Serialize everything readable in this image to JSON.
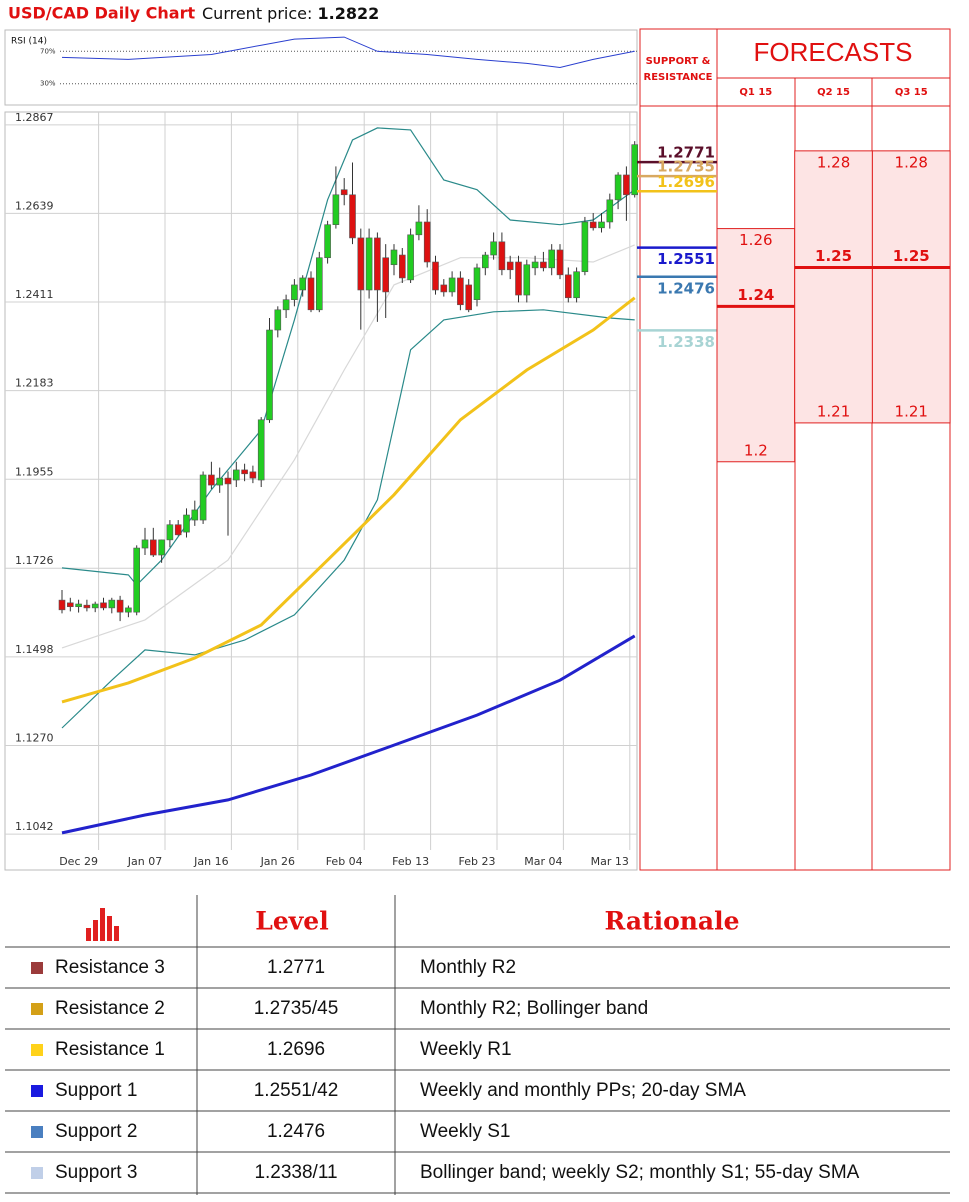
{
  "chart_data": {
    "type": "candlestick",
    "title": "USD/CAD Daily Chart",
    "price_label": "Current price:",
    "current_price": 1.2822,
    "ylim": [
      1.1001,
      1.29
    ],
    "yticks": [
      1.2867,
      1.2639,
      1.2411,
      1.2183,
      1.1955,
      1.1726,
      1.1498,
      {
        "value": 1.127,
        "label": "1.1270"
      },
      1.1042
    ],
    "grid": true,
    "up_color": "#22cc22",
    "down_color": "#dd1111",
    "categories": [
      null,
      null,
      "Dec 29",
      null,
      null,
      null,
      null,
      null,
      null,
      null,
      "Jan 07",
      null,
      null,
      null,
      null,
      null,
      null,
      null,
      "Jan 16",
      null,
      null,
      null,
      null,
      null,
      null,
      null,
      "Jan 26",
      null,
      null,
      null,
      null,
      null,
      null,
      null,
      "Feb 04",
      null,
      null,
      null,
      null,
      null,
      null,
      null,
      "Feb 13",
      null,
      null,
      null,
      null,
      null,
      null,
      null,
      "Feb 23",
      null,
      null,
      null,
      null,
      null,
      null,
      null,
      "Mar 04",
      null,
      null,
      null,
      null,
      null,
      null,
      null,
      "Mar 13",
      null,
      null,
      null
    ],
    "candles": [
      {
        "open": 1.1644,
        "high": 1.167,
        "low": 1.161,
        "close": 1.1619
      },
      {
        "open": 1.1637,
        "high": 1.165,
        "low": 1.1615,
        "close": 1.1627
      },
      {
        "open": 1.1627,
        "high": 1.1645,
        "low": 1.1612,
        "close": 1.1634
      },
      {
        "open": 1.1631,
        "high": 1.1645,
        "low": 1.1615,
        "close": 1.1624
      },
      {
        "open": 1.1624,
        "high": 1.164,
        "low": 1.1613,
        "close": 1.1634
      },
      {
        "open": 1.1637,
        "high": 1.165,
        "low": 1.1618,
        "close": 1.1624
      },
      {
        "open": 1.1624,
        "high": 1.165,
        "low": 1.161,
        "close": 1.1644
      },
      {
        "open": 1.1644,
        "high": 1.1655,
        "low": 1.159,
        "close": 1.1613
      },
      {
        "open": 1.1613,
        "high": 1.163,
        "low": 1.16,
        "close": 1.1624
      },
      {
        "open": 1.1613,
        "high": 1.1785,
        "low": 1.1605,
        "close": 1.1778
      },
      {
        "open": 1.1778,
        "high": 1.183,
        "low": 1.176,
        "close": 1.1799
      },
      {
        "open": 1.1799,
        "high": 1.183,
        "low": 1.1755,
        "close": 1.176
      },
      {
        "open": 1.176,
        "high": 1.18,
        "low": 1.174,
        "close": 1.1799
      },
      {
        "open": 1.1799,
        "high": 1.185,
        "low": 1.178,
        "close": 1.1838
      },
      {
        "open": 1.1838,
        "high": 1.185,
        "low": 1.181,
        "close": 1.1812
      },
      {
        "open": 1.1819,
        "high": 1.188,
        "low": 1.1805,
        "close": 1.1863
      },
      {
        "open": 1.185,
        "high": 1.19,
        "low": 1.1835,
        "close": 1.1876
      },
      {
        "open": 1.185,
        "high": 1.1975,
        "low": 1.184,
        "close": 1.1966
      },
      {
        "open": 1.1966,
        "high": 1.2,
        "low": 1.193,
        "close": 1.194
      },
      {
        "open": 1.194,
        "high": 1.1985,
        "low": 1.192,
        "close": 1.1958
      },
      {
        "open": 1.1958,
        "high": 1.1975,
        "low": 1.181,
        "close": 1.1943
      },
      {
        "open": 1.1953,
        "high": 1.2,
        "low": 1.1935,
        "close": 1.1979
      },
      {
        "open": 1.1979,
        "high": 1.1995,
        "low": 1.195,
        "close": 1.1969
      },
      {
        "open": 1.1974,
        "high": 1.199,
        "low": 1.1945,
        "close": 1.1958
      },
      {
        "open": 1.1953,
        "high": 1.2115,
        "low": 1.1935,
        "close": 1.2108
      },
      {
        "open": 1.2108,
        "high": 1.237,
        "low": 1.21,
        "close": 1.2339
      },
      {
        "open": 1.2339,
        "high": 1.24,
        "low": 1.232,
        "close": 1.2391
      },
      {
        "open": 1.2391,
        "high": 1.243,
        "low": 1.237,
        "close": 1.2417
      },
      {
        "open": 1.2417,
        "high": 1.247,
        "low": 1.24,
        "close": 1.2455
      },
      {
        "open": 1.2442,
        "high": 1.248,
        "low": 1.2425,
        "close": 1.2473
      },
      {
        "open": 1.2473,
        "high": 1.249,
        "low": 1.2385,
        "close": 1.2391
      },
      {
        "open": 1.2391,
        "high": 1.254,
        "low": 1.2385,
        "close": 1.2525
      },
      {
        "open": 1.2525,
        "high": 1.262,
        "low": 1.251,
        "close": 1.261
      },
      {
        "open": 1.261,
        "high": 1.276,
        "low": 1.26,
        "close": 1.2687
      },
      {
        "open": 1.27,
        "high": 1.273,
        "low": 1.266,
        "close": 1.2687
      },
      {
        "open": 1.2687,
        "high": 1.277,
        "low": 1.256,
        "close": 1.2576
      },
      {
        "open": 1.2576,
        "high": 1.26,
        "low": 1.234,
        "close": 1.2442
      },
      {
        "open": 1.2442,
        "high": 1.26,
        "low": 1.242,
        "close": 1.2576
      },
      {
        "open": 1.2576,
        "high": 1.259,
        "low": 1.236,
        "close": 1.2442
      },
      {
        "open": 1.2525,
        "high": 1.256,
        "low": 1.237,
        "close": 1.2437
      },
      {
        "open": 1.2507,
        "high": 1.256,
        "low": 1.248,
        "close": 1.2545
      },
      {
        "open": 1.2532,
        "high": 1.255,
        "low": 1.246,
        "close": 1.2473
      },
      {
        "open": 1.2468,
        "high": 1.26,
        "low": 1.246,
        "close": 1.2584
      },
      {
        "open": 1.2584,
        "high": 1.266,
        "low": 1.257,
        "close": 1.2617
      },
      {
        "open": 1.2617,
        "high": 1.265,
        "low": 1.25,
        "close": 1.2514
      },
      {
        "open": 1.2514,
        "high": 1.253,
        "low": 1.243,
        "close": 1.2442
      },
      {
        "open": 1.2455,
        "high": 1.247,
        "low": 1.2425,
        "close": 1.2437
      },
      {
        "open": 1.2437,
        "high": 1.249,
        "low": 1.2425,
        "close": 1.2473
      },
      {
        "open": 1.2473,
        "high": 1.249,
        "low": 1.239,
        "close": 1.2404
      },
      {
        "open": 1.2455,
        "high": 1.247,
        "low": 1.2385,
        "close": 1.2391
      },
      {
        "open": 1.2417,
        "high": 1.251,
        "low": 1.24,
        "close": 1.2499
      },
      {
        "open": 1.2499,
        "high": 1.254,
        "low": 1.248,
        "close": 1.2532
      },
      {
        "open": 1.2532,
        "high": 1.259,
        "low": 1.252,
        "close": 1.2566
      },
      {
        "open": 1.2566,
        "high": 1.259,
        "low": 1.248,
        "close": 1.2494
      },
      {
        "open": 1.2514,
        "high": 1.253,
        "low": 1.247,
        "close": 1.2494
      },
      {
        "open": 1.2514,
        "high": 1.253,
        "low": 1.241,
        "close": 1.2429
      },
      {
        "open": 1.2429,
        "high": 1.252,
        "low": 1.241,
        "close": 1.2507
      },
      {
        "open": 1.2499,
        "high": 1.253,
        "low": 1.248,
        "close": 1.2514
      },
      {
        "open": 1.2514,
        "high": 1.254,
        "low": 1.249,
        "close": 1.2499
      },
      {
        "open": 1.2499,
        "high": 1.256,
        "low": 1.248,
        "close": 1.2545
      },
      {
        "open": 1.2545,
        "high": 1.256,
        "low": 1.247,
        "close": 1.2481
      },
      {
        "open": 1.2481,
        "high": 1.25,
        "low": 1.241,
        "close": 1.2422
      },
      {
        "open": 1.2422,
        "high": 1.25,
        "low": 1.241,
        "close": 1.2489
      },
      {
        "open": 1.2489,
        "high": 1.263,
        "low": 1.248,
        "close": 1.2617
      },
      {
        "open": 1.2617,
        "high": 1.264,
        "low": 1.2595,
        "close": 1.2602
      },
      {
        "open": 1.2602,
        "high": 1.264,
        "low": 1.259,
        "close": 1.2617
      },
      {
        "open": 1.2617,
        "high": 1.269,
        "low": 1.26,
        "close": 1.2674
      },
      {
        "open": 1.2674,
        "high": 1.2745,
        "low": 1.265,
        "close": 1.2738
      },
      {
        "open": 1.2738,
        "high": 1.276,
        "low": 1.262,
        "close": 1.2687
      },
      {
        "open": 1.2687,
        "high": 1.2825,
        "low": 1.268,
        "close": 1.2816
      }
    ],
    "overlays": [
      {
        "color": "#d8d8d8",
        "x": [
          0,
          10,
          20,
          28,
          34,
          40,
          48,
          56,
          64,
          69
        ],
        "values": [
          1.1521,
          1.1593,
          1.1747,
          1.2005,
          1.2236,
          1.2455,
          1.2525,
          1.2525,
          1.2514,
          1.2558
        ]
      },
      {
        "color": "#2a8a8a",
        "x": [
          0,
          8,
          9,
          12,
          18,
          24,
          28,
          32,
          35,
          38,
          42,
          46,
          50,
          54,
          60,
          64,
          69
        ],
        "values": [
          1.1727,
          1.1709,
          1.1683,
          1.1747,
          1.1928,
          1.2082,
          1.2365,
          1.2674,
          1.2828,
          1.2859,
          1.2854,
          1.2725,
          1.27,
          1.2622,
          1.261,
          1.2622,
          1.27
        ]
      },
      {
        "color": "#2a8a8a",
        "x": [
          0,
          6,
          10,
          16,
          22,
          28,
          34,
          38,
          42,
          46,
          52,
          58,
          66,
          69
        ],
        "values": [
          1.1315,
          1.1438,
          1.1516,
          1.1503,
          1.1541,
          1.1606,
          1.1747,
          1.1902,
          1.2288,
          1.2365,
          1.2386,
          1.2391,
          1.237,
          1.2365
        ]
      },
      {
        "color": "#f2c21a",
        "x": [
          0,
          8,
          16,
          24,
          32,
          40,
          48,
          56,
          64,
          69
        ],
        "values": [
          1.1382,
          1.1431,
          1.1495,
          1.158,
          1.1747,
          1.1915,
          1.2108,
          1.2236,
          1.2339,
          1.2422
        ]
      },
      {
        "color": "#2222cc",
        "x": [
          0,
          10,
          20,
          30,
          40,
          50,
          60,
          69
        ],
        "values": [
          1.1045,
          1.1091,
          1.113,
          1.1194,
          1.1271,
          1.1348,
          1.1438,
          1.1552
        ]
      }
    ],
    "rsi": {
      "label": "RSI (14)",
      "color": "#2a3fcf",
      "ylim": [
        5,
        95
      ],
      "yticks": [
        {
          "value": 70,
          "label": "70%"
        },
        {
          "value": 30,
          "label": "30%"
        }
      ],
      "x": [
        0,
        8,
        18,
        24,
        28,
        34,
        38,
        44,
        50,
        56,
        60,
        64,
        69
      ],
      "values": [
        62.5,
        60,
        66,
        77.5,
        85,
        87.5,
        70,
        66,
        60,
        55,
        50,
        60,
        70
      ]
    },
    "sr_header": [
      "SUPPORT &",
      "RESISTANCE"
    ],
    "levels": [
      {
        "value": 1.2771,
        "color": "#5b0f2a"
      },
      {
        "value": 1.2735,
        "color": "#d8a860"
      },
      {
        "value": 1.2696,
        "color": "#f2c21a"
      },
      {
        "value": 1.2551,
        "color": "#1a1acc"
      },
      {
        "value": 1.2476,
        "color": "#3a78b0"
      },
      {
        "value": 1.2338,
        "color": "#a8d4d4"
      }
    ],
    "forecast_title": "FORECASTS",
    "forecasts": [
      {
        "name": "Q1 15",
        "high": 1.26,
        "mid": 1.24,
        "low": 1.2
      },
      {
        "name": "Q2 15",
        "high": 1.28,
        "mid": 1.25,
        "low": 1.21
      },
      {
        "name": "Q3 15",
        "high": 1.28,
        "mid": 1.25,
        "low": 1.21
      }
    ]
  },
  "table": {
    "header": [
      "Level",
      "Rationale"
    ],
    "rows": [
      {
        "name": "Resistance 3",
        "color": "#9b3b3b",
        "level": "1.2771",
        "rationale": "Monthly R2"
      },
      {
        "name": "Resistance 2",
        "color": "#d4a017",
        "level": "1.2735/45",
        "rationale": "Monthly R2; Bollinger band"
      },
      {
        "name": "Resistance 1",
        "color": "#ffd21a",
        "level": "1.2696",
        "rationale": "Weekly R1"
      },
      {
        "name": "Support 1",
        "color": "#1a1ae0",
        "level": "1.2551/42",
        "rationale": "Weekly and monthly PPs; 20-day SMA"
      },
      {
        "name": "Support 2",
        "color": "#4a7fc0",
        "level": "1.2476",
        "rationale": "Weekly S1"
      },
      {
        "name": "Support 3",
        "color": "#c0cfe8",
        "level": "1.2338/11",
        "rationale": "Bollinger band; weekly S2; monthly S1; 55-day SMA"
      }
    ]
  }
}
